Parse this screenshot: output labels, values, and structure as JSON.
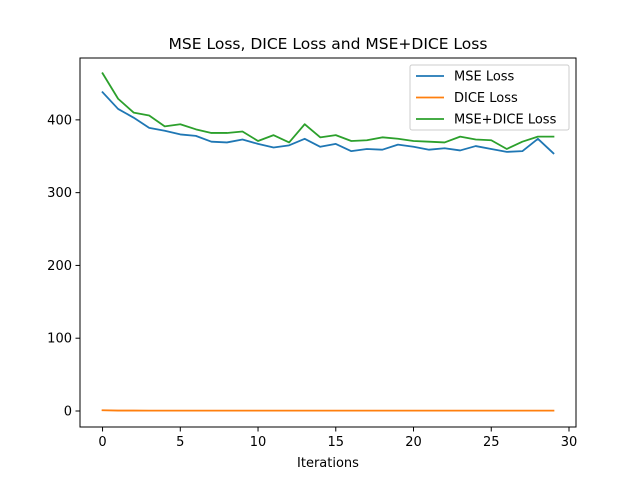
{
  "chart_data": {
    "type": "line",
    "title": "MSE Loss, DICE Loss and MSE+DICE Loss",
    "xlabel": "Iterations",
    "ylabel": "",
    "xlim": [
      -1.45,
      30.45
    ],
    "ylim": [
      -22,
      485
    ],
    "xticks": [
      0,
      5,
      10,
      15,
      20,
      25,
      30
    ],
    "yticks": [
      0,
      100,
      200,
      300,
      400
    ],
    "grid": false,
    "legend_position": "upper right",
    "x": [
      0,
      1,
      2,
      3,
      4,
      5,
      6,
      7,
      8,
      9,
      10,
      11,
      12,
      13,
      14,
      15,
      16,
      17,
      18,
      19,
      20,
      21,
      22,
      23,
      24,
      25,
      26,
      27,
      28,
      29
    ],
    "series": [
      {
        "name": "MSE Loss",
        "color": "#1f77b4",
        "values": [
          438,
          415,
          403,
          389,
          385,
          380,
          378,
          370,
          369,
          373,
          367,
          362,
          365,
          374,
          363,
          367,
          357,
          360,
          359,
          366,
          363,
          359,
          361,
          358,
          364,
          360,
          356,
          357,
          374,
          354
        ]
      },
      {
        "name": "DICE Loss",
        "color": "#ff7f0e",
        "values": [
          1,
          0.6,
          0.6,
          0.5,
          0.5,
          0.5,
          0.5,
          0.5,
          0.5,
          0.5,
          0.5,
          0.5,
          0.5,
          0.5,
          0.5,
          0.5,
          0.5,
          0.5,
          0.5,
          0.5,
          0.5,
          0.5,
          0.5,
          0.5,
          0.5,
          0.5,
          0.5,
          0.5,
          0.5,
          0.5
        ]
      },
      {
        "name": "MSE+DICE Loss",
        "color": "#2ca02c",
        "values": [
          464,
          429,
          410,
          406,
          391,
          394,
          387,
          382,
          382,
          384,
          371,
          379,
          369,
          394,
          376,
          379,
          371,
          372,
          376,
          374,
          371,
          370,
          369,
          377,
          373,
          372,
          360,
          370,
          377,
          377
        ]
      }
    ]
  }
}
